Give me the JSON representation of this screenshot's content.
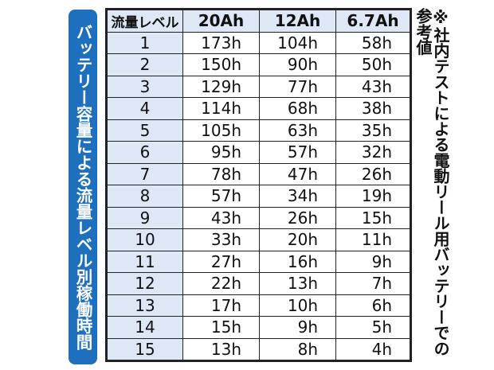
{
  "title": "バッテリー容量による流量レベル別稼働時間",
  "note": "※社内テストによる電動リール用バッテリーでの参考値",
  "colors": {
    "banner": "#1f6fbf",
    "header_bg": "#dde7f5"
  },
  "table": {
    "headers": [
      "流量レベル",
      "20Ah",
      "12Ah",
      "6.7Ah"
    ],
    "rows": [
      [
        "1",
        "173h",
        "104h",
        "58h"
      ],
      [
        "2",
        "150h",
        "90h",
        "50h"
      ],
      [
        "3",
        "129h",
        "77h",
        "43h"
      ],
      [
        "4",
        "114h",
        "68h",
        "38h"
      ],
      [
        "5",
        "105h",
        "63h",
        "35h"
      ],
      [
        "6",
        "95h",
        "57h",
        "32h"
      ],
      [
        "7",
        "78h",
        "47h",
        "26h"
      ],
      [
        "8",
        "57h",
        "34h",
        "19h"
      ],
      [
        "9",
        "43h",
        "26h",
        "15h"
      ],
      [
        "10",
        "33h",
        "20h",
        "11h"
      ],
      [
        "11",
        "27h",
        "16h",
        "9h"
      ],
      [
        "12",
        "22h",
        "13h",
        "7h"
      ],
      [
        "13",
        "17h",
        "10h",
        "6h"
      ],
      [
        "14",
        "15h",
        "9h",
        "5h"
      ],
      [
        "15",
        "13h",
        "8h",
        "4h"
      ]
    ]
  }
}
